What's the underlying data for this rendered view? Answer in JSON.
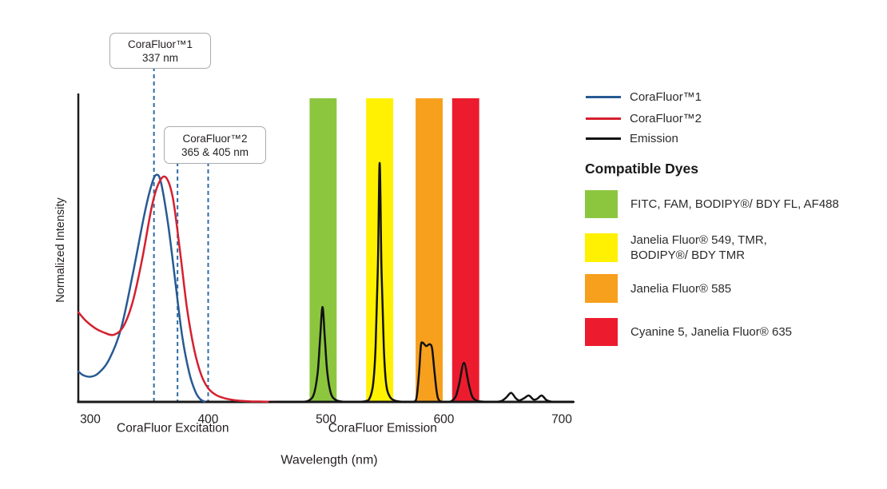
{
  "chart_data": {
    "type": "line",
    "title": "",
    "xlabel": "Wavelength (nm)",
    "ylabel": "Normalized Intensity",
    "xlim": [
      290,
      710
    ],
    "ylim": [
      0,
      1
    ],
    "grid": false,
    "x_ticks": [
      300,
      400,
      500,
      600,
      700
    ],
    "axis_group_labels": [
      {
        "text": "CoraFluor Excitation",
        "x_nm": 370
      },
      {
        "text": "CoraFluor Emission",
        "x_nm": 548
      }
    ],
    "annotations": [
      {
        "name": "corafluor1-excitation",
        "lines": [
          "CoraFluor™1",
          "337 nm"
        ]
      },
      {
        "name": "corafluor2-excitation",
        "lines": [
          "CoraFluor™2",
          "365 & 405 nm"
        ]
      }
    ],
    "excitation_markers": [
      {
        "series": "CoraFluor™1",
        "label_nm": "337 nm",
        "x_nm": 354
      },
      {
        "series": "CoraFluor™2",
        "label_nm": "365 nm",
        "x_nm": 374
      },
      {
        "series": "CoraFluor™2",
        "label_nm": "405 nm",
        "x_nm": 400
      }
    ],
    "marker_color": "#2e6ba4",
    "filter_bands": [
      {
        "name": "green",
        "color": "#8cc63f",
        "from_nm": 486,
        "to_nm": 509
      },
      {
        "name": "yellow",
        "color": "#fff101",
        "from_nm": 534,
        "to_nm": 557
      },
      {
        "name": "orange",
        "color": "#f7a01e",
        "from_nm": 576,
        "to_nm": 599
      },
      {
        "name": "red",
        "color": "#ec1c2e",
        "from_nm": 607,
        "to_nm": 630
      }
    ],
    "series": [
      {
        "name": "CoraFluor™1",
        "kind": "excitation",
        "color": "#275a93",
        "points": [
          [
            290,
            0.1
          ],
          [
            294,
            0.088
          ],
          [
            300,
            0.083
          ],
          [
            307,
            0.095
          ],
          [
            316,
            0.14
          ],
          [
            326,
            0.24
          ],
          [
            336,
            0.42
          ],
          [
            346,
            0.62
          ],
          [
            352,
            0.715
          ],
          [
            356,
            0.748
          ],
          [
            360,
            0.722
          ],
          [
            366,
            0.585
          ],
          [
            372,
            0.4
          ],
          [
            378,
            0.215
          ],
          [
            384,
            0.095
          ],
          [
            389,
            0.035
          ],
          [
            393,
            0.01
          ],
          [
            397,
            0.001
          ]
        ]
      },
      {
        "name": "CoraFluor™2",
        "kind": "excitation",
        "color": "#d4202f",
        "points": [
          [
            290,
            0.295
          ],
          [
            296,
            0.268
          ],
          [
            304,
            0.243
          ],
          [
            312,
            0.228
          ],
          [
            320,
            0.221
          ],
          [
            328,
            0.248
          ],
          [
            336,
            0.33
          ],
          [
            344,
            0.47
          ],
          [
            352,
            0.64
          ],
          [
            358,
            0.72
          ],
          [
            364,
            0.74
          ],
          [
            370,
            0.672
          ],
          [
            376,
            0.5
          ],
          [
            382,
            0.31
          ],
          [
            388,
            0.175
          ],
          [
            394,
            0.09
          ],
          [
            400,
            0.045
          ],
          [
            407,
            0.022
          ],
          [
            415,
            0.011
          ],
          [
            424,
            0.005
          ],
          [
            434,
            0.002
          ],
          [
            446,
            0.001
          ],
          [
            458,
            0.0
          ]
        ]
      },
      {
        "name": "Emission",
        "kind": "emission",
        "color": "#121212",
        "points": [
          [
            452,
            0
          ],
          [
            478,
            0
          ],
          [
            486,
            0.006
          ],
          [
            490,
            0.03
          ],
          [
            493,
            0.1
          ],
          [
            495,
            0.21
          ],
          [
            497,
            0.313
          ],
          [
            499,
            0.21
          ],
          [
            501,
            0.1
          ],
          [
            504,
            0.03
          ],
          [
            508,
            0.007
          ],
          [
            514,
            0.001
          ],
          [
            524,
            0
          ],
          [
            533,
            0.002
          ],
          [
            537,
            0.012
          ],
          [
            540,
            0.06
          ],
          [
            542,
            0.18
          ],
          [
            544,
            0.45
          ],
          [
            545.5,
            0.787
          ],
          [
            547,
            0.45
          ],
          [
            549,
            0.18
          ],
          [
            551,
            0.06
          ],
          [
            554,
            0.018
          ],
          [
            558,
            0.005
          ],
          [
            563,
            0.001
          ],
          [
            570,
            0
          ],
          [
            575,
            0.001
          ],
          [
            577,
            0.02
          ],
          [
            579,
            0.1
          ],
          [
            580.5,
            0.185
          ],
          [
            582,
            0.195
          ],
          [
            585,
            0.184
          ],
          [
            588,
            0.19
          ],
          [
            590,
            0.175
          ],
          [
            592,
            0.1
          ],
          [
            594,
            0.03
          ],
          [
            596,
            0.005
          ],
          [
            600,
            0
          ],
          [
            606,
            0.002
          ],
          [
            610,
            0.018
          ],
          [
            613,
            0.06
          ],
          [
            617,
            0.129
          ],
          [
            621,
            0.06
          ],
          [
            624,
            0.018
          ],
          [
            628,
            0.004
          ],
          [
            633,
            0.001
          ],
          [
            640,
            0
          ],
          [
            648,
            0.002
          ],
          [
            653,
            0.015
          ],
          [
            657,
            0.03
          ],
          [
            661,
            0.012
          ],
          [
            664,
            0.005
          ],
          [
            668,
            0.012
          ],
          [
            672,
            0.021
          ],
          [
            676,
            0.008
          ],
          [
            679,
            0.01
          ],
          [
            683,
            0.021
          ],
          [
            687,
            0.006
          ],
          [
            691,
            0.001
          ],
          [
            696,
            0
          ],
          [
            710,
            0
          ]
        ]
      }
    ],
    "legend_position": "right-top"
  },
  "legend": {
    "items": [
      {
        "label": "CoraFluor™1",
        "color": "#275a93"
      },
      {
        "label": "CoraFluor™2",
        "color": "#d4202f"
      },
      {
        "label": "Emission",
        "color": "#121212"
      }
    ]
  },
  "compatible_dyes": {
    "heading": "Compatible Dyes",
    "items": [
      {
        "name": "green-filter-dyes",
        "color": "#8cc63f",
        "label": "FITC, FAM, BODIPY®/ BDY FL, AF488"
      },
      {
        "name": "yellow-filter-dyes",
        "color": "#fff101",
        "label": "Janelia Fluor® 549, TMR,\nBODIPY®/ BDY TMR"
      },
      {
        "name": "orange-filter-dyes",
        "color": "#f7a01e",
        "label": "Janelia Fluor® 585"
      },
      {
        "name": "red-filter-dyes",
        "color": "#ec1c2e",
        "label": "Cyanine 5, Janelia Fluor® 635"
      }
    ]
  }
}
